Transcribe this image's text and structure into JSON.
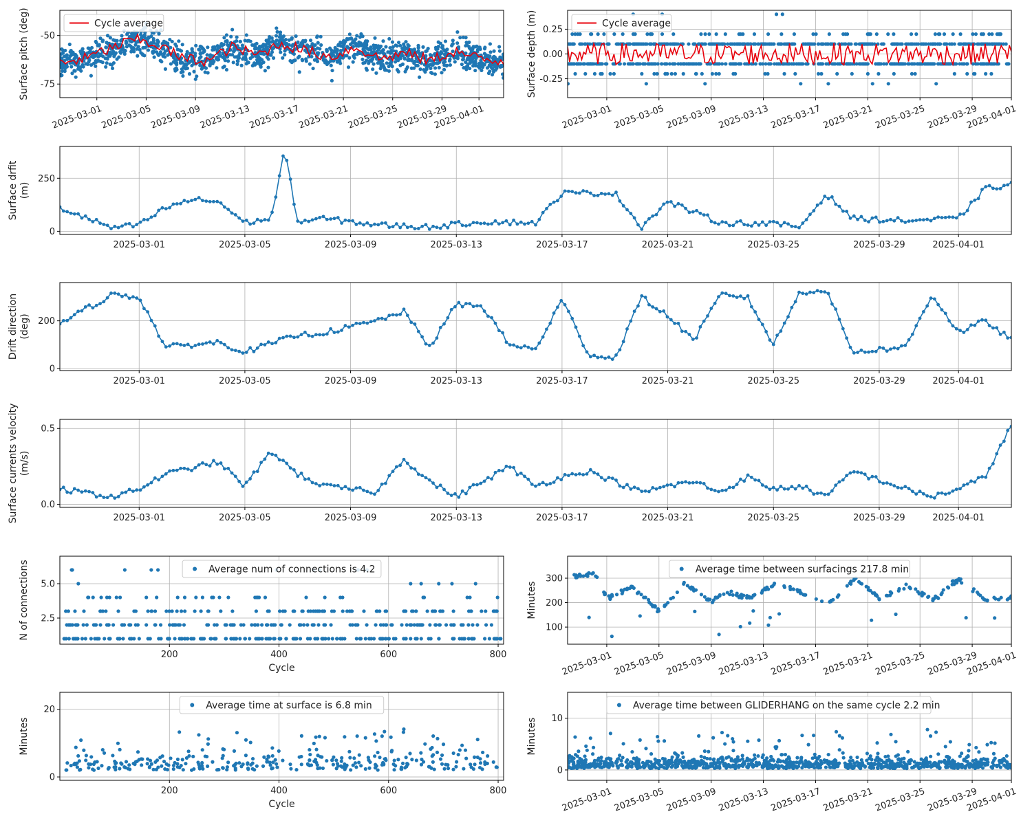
{
  "colors": {
    "series": "#1f77b4",
    "average": "#e8000b",
    "grid": "#b0b0b0",
    "axis": "#000000"
  },
  "chart_data": [
    {
      "id": "pitch",
      "type": "scatter",
      "xaxis": "date",
      "ylabel": "Surface pitch (deg)",
      "yticks": [
        -75,
        -50
      ],
      "ylim": [
        -82,
        -37
      ],
      "xlim": [
        "2025-02-26",
        "2025-04-03"
      ],
      "xticks": [
        "2025-03-01",
        "2025-03-05",
        "2025-03-09",
        "2025-03-13",
        "2025-03-17",
        "2025-03-21",
        "2025-03-25",
        "2025-03-29",
        "2025-04-01"
      ],
      "grid": true,
      "legend": {
        "position": "top-left",
        "entries": [
          "Cycle average"
        ]
      },
      "series": [
        {
          "name": "Cycle average",
          "kind": "line",
          "color": "#e8000b",
          "x": [
            "2025-02-26",
            "2025-02-28",
            "2025-03-02",
            "2025-03-04",
            "2025-03-06",
            "2025-03-08",
            "2025-03-10",
            "2025-03-12",
            "2025-03-14",
            "2025-03-16",
            "2025-03-18",
            "2025-03-20",
            "2025-03-22",
            "2025-03-24",
            "2025-03-26",
            "2025-03-28",
            "2025-03-30",
            "2025-04-01",
            "2025-04-02"
          ],
          "y": [
            -64,
            -62,
            -57,
            -52,
            -55,
            -62,
            -63,
            -56,
            -60,
            -54,
            -58,
            -61,
            -56,
            -62,
            -59,
            -63,
            -58,
            -62,
            -63
          ]
        }
      ]
    },
    {
      "id": "depth",
      "type": "scatter",
      "xaxis": "date",
      "ylabel": "Surface depth (m)",
      "yticks": [
        -0.25,
        0.0,
        0.25
      ],
      "ylim": [
        -0.44,
        0.44
      ],
      "xlim": [
        "2025-02-26",
        "2025-04-01"
      ],
      "xticks": [
        "2025-03-01",
        "2025-03-05",
        "2025-03-09",
        "2025-03-13",
        "2025-03-17",
        "2025-03-21",
        "2025-03-25",
        "2025-03-29",
        "2025-04-01"
      ],
      "grid": true,
      "legend": {
        "position": "top-left",
        "entries": [
          "Cycle average"
        ]
      },
      "levels": [
        -0.3,
        -0.2,
        -0.1,
        0.0,
        0.1,
        0.2,
        0.4
      ],
      "series": [
        {
          "name": "Cycle average",
          "kind": "line",
          "color": "#e8000b"
        }
      ]
    },
    {
      "id": "drift",
      "type": "line",
      "xaxis": "date",
      "ylabel": "Surface drfit\n(m)",
      "yticks": [
        0,
        250
      ],
      "ylim": [
        -15,
        400
      ],
      "xlim": [
        "2025-02-26",
        "2025-04-03"
      ],
      "xticks": [
        "2025-03-01",
        "2025-03-05",
        "2025-03-09",
        "2025-03-13",
        "2025-03-17",
        "2025-03-21",
        "2025-03-25",
        "2025-03-29",
        "2025-04-01"
      ],
      "grid": true,
      "x": [
        "2025-02-26",
        "2025-02-28",
        "2025-03-01",
        "2025-03-02",
        "2025-03-03",
        "2025-03-04",
        "2025-03-05",
        "2025-03-06",
        "2025-03-06T12",
        "2025-03-07",
        "2025-03-08",
        "2025-03-10",
        "2025-03-12",
        "2025-03-14",
        "2025-03-16",
        "2025-03-17",
        "2025-03-19",
        "2025-03-20",
        "2025-03-21",
        "2025-03-23",
        "2025-03-25",
        "2025-03-26",
        "2025-03-27",
        "2025-03-28",
        "2025-03-30",
        "2025-04-01",
        "2025-04-02",
        "2025-04-03"
      ],
      "y": [
        110,
        15,
        30,
        110,
        150,
        140,
        40,
        60,
        385,
        45,
        60,
        30,
        20,
        45,
        40,
        180,
        180,
        20,
        140,
        40,
        35,
        20,
        175,
        60,
        50,
        60,
        200,
        220
      ]
    },
    {
      "id": "direction",
      "type": "line",
      "xaxis": "date",
      "ylabel": "Drift direction\n(deg)",
      "yticks": [
        0,
        200
      ],
      "ylim": [
        -8,
        360
      ],
      "xlim": [
        "2025-02-26",
        "2025-04-03"
      ],
      "xticks": [
        "2025-03-01",
        "2025-03-05",
        "2025-03-09",
        "2025-03-13",
        "2025-03-17",
        "2025-03-21",
        "2025-03-25",
        "2025-03-29",
        "2025-04-01"
      ],
      "grid": true,
      "x": [
        "2025-02-26",
        "2025-02-28",
        "2025-03-01",
        "2025-03-02",
        "2025-03-04",
        "2025-03-05",
        "2025-03-07",
        "2025-03-08",
        "2025-03-10",
        "2025-03-11",
        "2025-03-12",
        "2025-03-13",
        "2025-03-14",
        "2025-03-15",
        "2025-03-16",
        "2025-03-17",
        "2025-03-18",
        "2025-03-19",
        "2025-03-20",
        "2025-03-21",
        "2025-03-22",
        "2025-03-23",
        "2025-03-24",
        "2025-03-25",
        "2025-03-26",
        "2025-03-27",
        "2025-03-28",
        "2025-03-30",
        "2025-03-31",
        "2025-04-01",
        "2025-04-02",
        "2025-04-03"
      ],
      "y": [
        190,
        310,
        300,
        90,
        110,
        70,
        140,
        150,
        200,
        240,
        90,
        270,
        260,
        100,
        80,
        290,
        60,
        40,
        300,
        220,
        120,
        310,
        300,
        100,
        320,
        330,
        70,
        90,
        310,
        150,
        200,
        120
      ]
    },
    {
      "id": "velocity",
      "type": "line",
      "xaxis": "date",
      "ylabel": "Surface currents velocity\n(m/s)",
      "yticks": [
        0.0,
        0.5
      ],
      "ylim": [
        -0.02,
        0.56
      ],
      "xlim": [
        "2025-02-26",
        "2025-04-03"
      ],
      "xticks": [
        "2025-03-01",
        "2025-03-05",
        "2025-03-09",
        "2025-03-13",
        "2025-03-17",
        "2025-03-21",
        "2025-03-25",
        "2025-03-29",
        "2025-04-01"
      ],
      "grid": true,
      "x": [
        "2025-02-26",
        "2025-02-28",
        "2025-03-01",
        "2025-03-02",
        "2025-03-04",
        "2025-03-05",
        "2025-03-06",
        "2025-03-07",
        "2025-03-08",
        "2025-03-10",
        "2025-03-11",
        "2025-03-12",
        "2025-03-13",
        "2025-03-14",
        "2025-03-15",
        "2025-03-16",
        "2025-03-17",
        "2025-03-18",
        "2025-03-19",
        "2025-03-20",
        "2025-03-21",
        "2025-03-22",
        "2025-03-23",
        "2025-03-24",
        "2025-03-25",
        "2025-03-26",
        "2025-03-27",
        "2025-03-28",
        "2025-03-30",
        "2025-03-31",
        "2025-04-01",
        "2025-04-02",
        "2025-04-03"
      ],
      "y": [
        0.1,
        0.05,
        0.1,
        0.2,
        0.28,
        0.12,
        0.35,
        0.2,
        0.12,
        0.08,
        0.3,
        0.15,
        0.05,
        0.15,
        0.25,
        0.12,
        0.18,
        0.22,
        0.15,
        0.08,
        0.12,
        0.15,
        0.08,
        0.18,
        0.1,
        0.12,
        0.05,
        0.22,
        0.1,
        0.05,
        0.1,
        0.18,
        0.52
      ]
    },
    {
      "id": "connections",
      "type": "scatter",
      "xaxis": "numeric",
      "xlabel": "Cycle",
      "ylabel": "N of connections",
      "xticks": [
        200,
        400,
        600,
        800
      ],
      "xlim": [
        0,
        810
      ],
      "yticks": [
        2.5,
        5.0
      ],
      "ylim": [
        0.6,
        7.0
      ],
      "grid": true,
      "legend": {
        "position": "top-center",
        "entries": [
          "Average num of connections is 4.2"
        ]
      }
    },
    {
      "id": "surfacings",
      "type": "scatter",
      "xaxis": "date",
      "ylabel": "Minutes",
      "yticks": [
        100,
        200,
        300
      ],
      "ylim": [
        30,
        390
      ],
      "xlim": [
        "2025-02-26",
        "2025-04-01"
      ],
      "xticks": [
        "2025-03-01",
        "2025-03-05",
        "2025-03-09",
        "2025-03-13",
        "2025-03-17",
        "2025-03-21",
        "2025-03-25",
        "2025-03-29",
        "2025-04-01"
      ],
      "grid": true,
      "legend": {
        "position": "top-center",
        "entries": [
          "Average time between surfacings 217.8 min"
        ]
      },
      "trend": {
        "x": [
          "2025-02-26",
          "2025-02-28",
          "2025-03-01",
          "2025-03-03",
          "2025-03-05",
          "2025-03-07",
          "2025-03-09",
          "2025-03-10",
          "2025-03-12",
          "2025-03-14",
          "2025-03-16",
          "2025-03-18",
          "2025-03-20",
          "2025-03-22",
          "2025-03-24",
          "2025-03-26",
          "2025-03-28",
          "2025-03-30",
          "2025-04-01"
        ],
        "y": [
          300,
          320,
          220,
          265,
          165,
          280,
          200,
          245,
          220,
          280,
          240,
          195,
          300,
          215,
          270,
          210,
          300,
          210,
          220
        ]
      }
    },
    {
      "id": "time-at-surface",
      "type": "scatter",
      "xaxis": "numeric",
      "xlabel": "Cycle",
      "ylabel": "Minutes",
      "xticks": [
        200,
        400,
        600,
        800
      ],
      "xlim": [
        0,
        810
      ],
      "yticks": [
        0,
        20
      ],
      "ylim": [
        -1,
        25
      ],
      "grid": true,
      "legend": {
        "position": "top-center",
        "entries": [
          "Average time at surface is 6.8 min"
        ]
      }
    },
    {
      "id": "gliderhang",
      "type": "scatter",
      "xaxis": "date",
      "ylabel": "Minutes",
      "yticks": [
        0,
        10
      ],
      "ylim": [
        -2,
        15
      ],
      "xlim": [
        "2025-02-26",
        "2025-04-01"
      ],
      "xticks": [
        "2025-03-01",
        "2025-03-05",
        "2025-03-09",
        "2025-03-13",
        "2025-03-17",
        "2025-03-21",
        "2025-03-25",
        "2025-03-29",
        "2025-04-01"
      ],
      "grid": true,
      "legend": {
        "position": "top-center",
        "entries": [
          "Average time between GLIDERHANG on the same cycle 2.2 min"
        ]
      }
    }
  ]
}
